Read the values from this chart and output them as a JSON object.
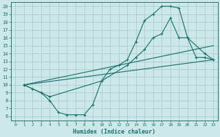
{
  "xlabel": "Humidex (Indice chaleur)",
  "bg_color": "#cce8e8",
  "grid_color": "#aacccc",
  "line_color": "#1a7070",
  "xlim": [
    -0.5,
    23.5
  ],
  "ylim": [
    5.5,
    20.5
  ],
  "xticks": [
    0,
    1,
    2,
    3,
    4,
    5,
    6,
    7,
    8,
    9,
    10,
    11,
    12,
    13,
    14,
    15,
    16,
    17,
    18,
    19,
    20,
    21,
    22,
    23
  ],
  "yticks": [
    6,
    7,
    8,
    9,
    10,
    11,
    12,
    13,
    14,
    15,
    16,
    17,
    18,
    19,
    20
  ],
  "curve1_x": [
    1,
    2,
    3,
    4,
    5,
    6,
    7,
    8,
    9,
    10,
    11,
    12,
    13,
    14,
    15,
    16,
    17,
    18,
    19,
    20,
    21,
    22,
    23
  ],
  "curve1_y": [
    10,
    9.5,
    9,
    8,
    6.5,
    6.2,
    6.2,
    6.2,
    7.5,
    10.5,
    12,
    12.5,
    13.2,
    15.5,
    18.2,
    19.0,
    20.0,
    20.0,
    19.8,
    16.0,
    13.5,
    13.5,
    13.2
  ],
  "curve2_x": [
    1,
    3,
    4,
    10,
    13,
    14,
    15,
    16,
    17,
    18,
    19,
    20,
    22,
    23
  ],
  "curve2_y": [
    10,
    9,
    8.5,
    10.5,
    12.5,
    13.5,
    14.5,
    16.0,
    16.5,
    18.5,
    16.0,
    16.0,
    14.0,
    13.2
  ],
  "curve3_x": [
    1,
    23
  ],
  "curve3_y": [
    10,
    13.2
  ],
  "curve4_x": [
    1,
    23
  ],
  "curve4_y": [
    10,
    15.0
  ]
}
